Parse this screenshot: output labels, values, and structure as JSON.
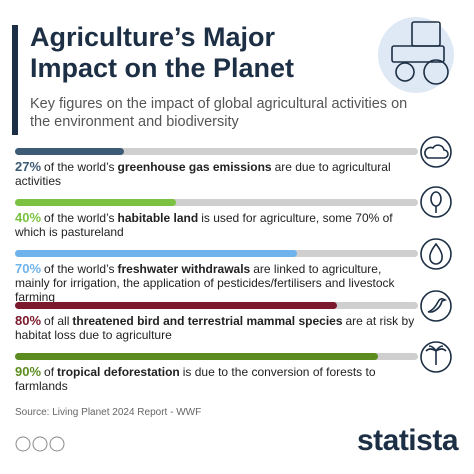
{
  "header": {
    "title": "Agriculture’s Major Impact on the Planet",
    "subtitle": "Key figures on the impact of global agricultural activities on the environment and biodiversity"
  },
  "chart_data": {
    "type": "progress",
    "xlim": [
      0,
      100
    ],
    "items": [
      {
        "value": 27,
        "value_label": "27%",
        "color": "#3e5b76",
        "parts": [
          "of the world’s",
          "greenhouse gas emissions",
          "are due to agricultural activities"
        ]
      },
      {
        "value": 40,
        "value_label": "40%",
        "color": "#7cc242",
        "parts": [
          "of the world’s",
          "habitable land",
          "is used for agriculture, some 70% of which is pastureland"
        ]
      },
      {
        "value": 70,
        "value_label": "70%",
        "color": "#6fb3ec",
        "parts": [
          "of the world’s",
          "freshwater withdrawals",
          "are linked to agriculture, mainly for irrigation, the application of pesticides/fertilisers and livestock farming"
        ]
      },
      {
        "value": 80,
        "value_label": "80%",
        "color": "#7b1a2c",
        "parts": [
          "of all",
          "threatened bird and terrestrial mammal species",
          "are at risk by habitat loss due to agriculture"
        ]
      },
      {
        "value": 90,
        "value_label": "90%",
        "color": "#5c8c1f",
        "parts": [
          "of",
          "tropical deforestation",
          "is due to the conversion of forests to farmlands"
        ]
      }
    ]
  },
  "footer": {
    "source": "Source: Living Planet 2024 Report - WWF",
    "brand": "statista"
  }
}
